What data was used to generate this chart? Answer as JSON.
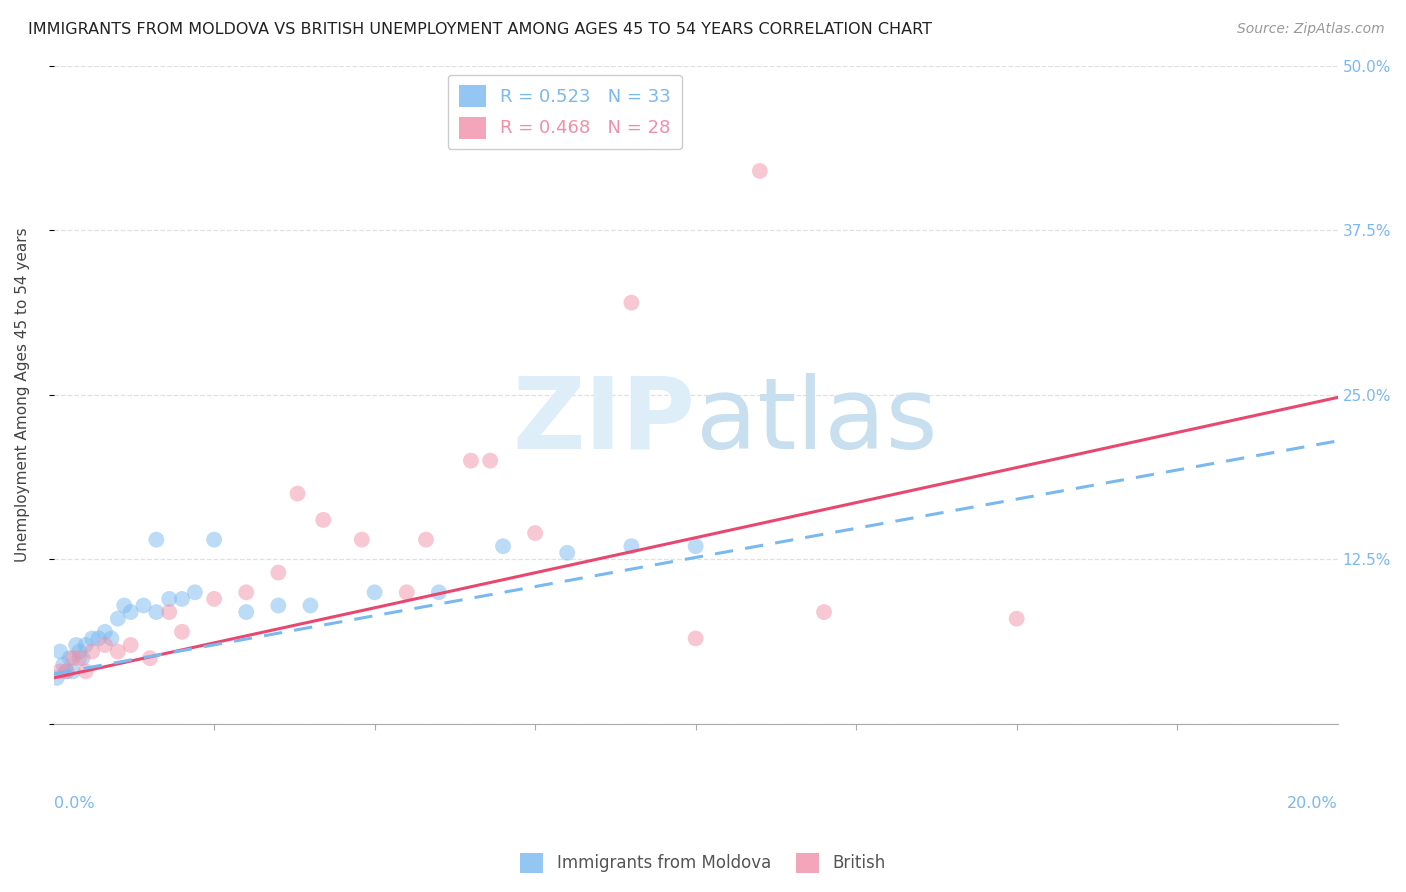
{
  "title": "IMMIGRANTS FROM MOLDOVA VS BRITISH UNEMPLOYMENT AMONG AGES 45 TO 54 YEARS CORRELATION CHART",
  "source": "Source: ZipAtlas.com",
  "ylabel": "Unemployment Among Ages 45 to 54 years",
  "ytick_values": [
    0.0,
    0.125,
    0.25,
    0.375,
    0.5
  ],
  "ytick_labels": [
    "",
    "12.5%",
    "25.0%",
    "37.5%",
    "50.0%"
  ],
  "xlim": [
    0.0,
    0.2
  ],
  "ylim": [
    0.0,
    0.5
  ],
  "moldova_scatter": [
    [
      0.0005,
      0.035
    ],
    [
      0.001,
      0.055
    ],
    [
      0.0015,
      0.045
    ],
    [
      0.002,
      0.04
    ],
    [
      0.0025,
      0.05
    ],
    [
      0.003,
      0.04
    ],
    [
      0.0035,
      0.06
    ],
    [
      0.004,
      0.055
    ],
    [
      0.0045,
      0.05
    ],
    [
      0.005,
      0.06
    ],
    [
      0.006,
      0.065
    ],
    [
      0.007,
      0.065
    ],
    [
      0.008,
      0.07
    ],
    [
      0.009,
      0.065
    ],
    [
      0.01,
      0.08
    ],
    [
      0.011,
      0.09
    ],
    [
      0.012,
      0.085
    ],
    [
      0.014,
      0.09
    ],
    [
      0.016,
      0.085
    ],
    [
      0.018,
      0.095
    ],
    [
      0.02,
      0.095
    ],
    [
      0.022,
      0.1
    ],
    [
      0.025,
      0.14
    ],
    [
      0.03,
      0.085
    ],
    [
      0.035,
      0.09
    ],
    [
      0.04,
      0.09
    ],
    [
      0.05,
      0.1
    ],
    [
      0.06,
      0.1
    ],
    [
      0.07,
      0.135
    ],
    [
      0.08,
      0.13
    ],
    [
      0.09,
      0.135
    ],
    [
      0.1,
      0.135
    ],
    [
      0.016,
      0.14
    ]
  ],
  "british_scatter": [
    [
      0.001,
      0.04
    ],
    [
      0.002,
      0.04
    ],
    [
      0.003,
      0.05
    ],
    [
      0.004,
      0.05
    ],
    [
      0.005,
      0.04
    ],
    [
      0.006,
      0.055
    ],
    [
      0.008,
      0.06
    ],
    [
      0.01,
      0.055
    ],
    [
      0.012,
      0.06
    ],
    [
      0.015,
      0.05
    ],
    [
      0.018,
      0.085
    ],
    [
      0.02,
      0.07
    ],
    [
      0.025,
      0.095
    ],
    [
      0.03,
      0.1
    ],
    [
      0.035,
      0.115
    ],
    [
      0.038,
      0.175
    ],
    [
      0.042,
      0.155
    ],
    [
      0.048,
      0.14
    ],
    [
      0.055,
      0.1
    ],
    [
      0.058,
      0.14
    ],
    [
      0.065,
      0.2
    ],
    [
      0.068,
      0.2
    ],
    [
      0.075,
      0.145
    ],
    [
      0.09,
      0.32
    ],
    [
      0.1,
      0.065
    ],
    [
      0.11,
      0.42
    ],
    [
      0.12,
      0.085
    ],
    [
      0.15,
      0.08
    ]
  ],
  "moldova_line_x": [
    0.0,
    0.2
  ],
  "moldova_line_y": [
    0.038,
    0.215
  ],
  "british_line_x": [
    0.0,
    0.2
  ],
  "british_line_y": [
    0.035,
    0.248
  ],
  "scatter_alpha": 0.5,
  "scatter_size": 130,
  "scatter_color_moldova": "#7ab8f0",
  "scatter_color_british": "#f090a8",
  "line_color_moldova": "#7ab8f0",
  "line_color_british": "#e84870",
  "background_color": "#ffffff",
  "grid_color": "#dddddd",
  "watermark_zip_color": "#ddeef8",
  "watermark_atlas_color": "#c8dff0"
}
